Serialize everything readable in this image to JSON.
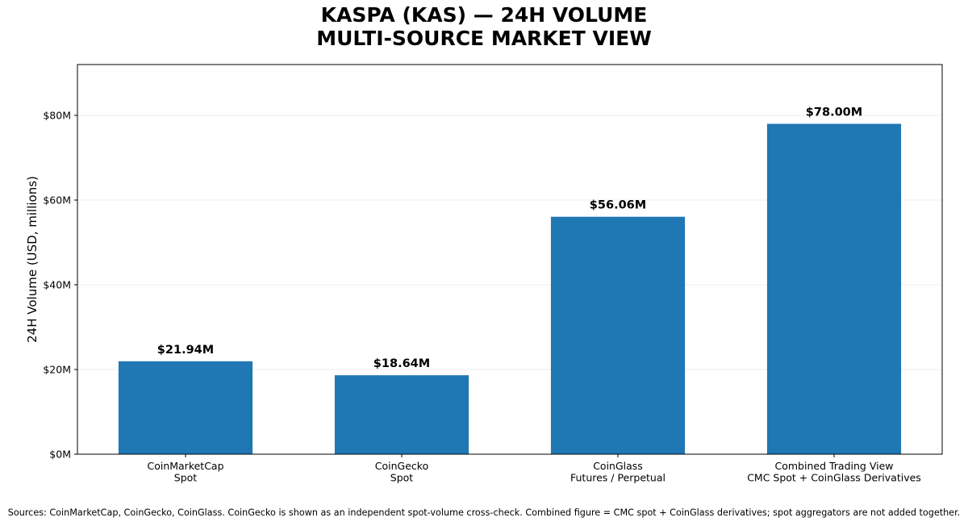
{
  "chart_data": {
    "type": "bar",
    "title_lines": [
      "KASPA (KAS) — 24H VOLUME",
      "MULTI-SOURCE MARKET VIEW"
    ],
    "ylabel": "24H Volume (USD, millions)",
    "xlabel": "",
    "ylim": [
      0,
      92
    ],
    "yticks": [
      0,
      20,
      40,
      60,
      80
    ],
    "ytick_labels": [
      "$0M",
      "$20M",
      "$40M",
      "$60M",
      "$80M"
    ],
    "grid": "y",
    "color": "#1f77b4",
    "categories": [
      [
        "CoinMarketCap",
        "Spot"
      ],
      [
        "CoinGecko",
        "Spot"
      ],
      [
        "CoinGlass",
        "Futures / Perpetual"
      ],
      [
        "Combined Trading View",
        "CMC Spot + CoinGlass Derivatives"
      ]
    ],
    "values": [
      21.94,
      18.64,
      56.06,
      78.0
    ],
    "value_labels": [
      "$21.94M",
      "$18.64M",
      "$56.06M",
      "$78.00M"
    ]
  },
  "footnote": "Sources: CoinMarketCap, CoinGecko, CoinGlass. CoinGecko is shown as an independent spot-volume cross-check. Combined figure = CMC spot + CoinGlass derivatives; spot aggregators are not added together."
}
